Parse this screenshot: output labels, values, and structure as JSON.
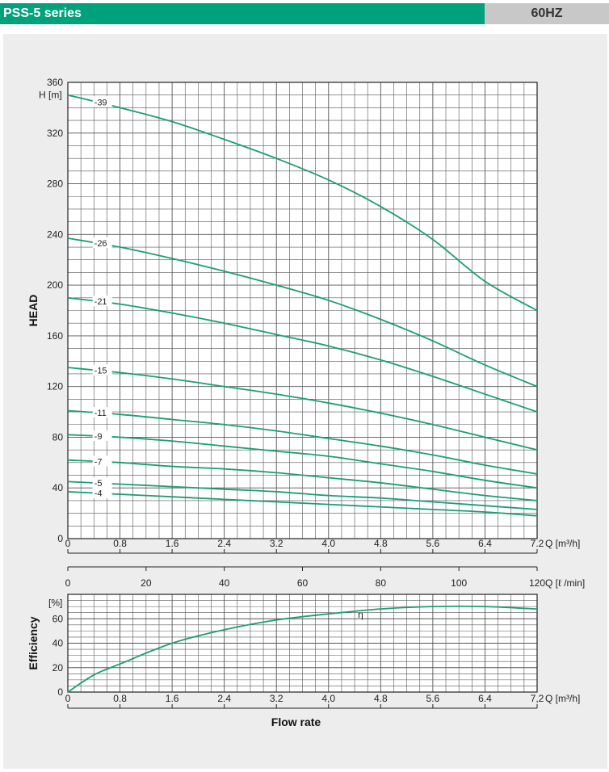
{
  "header": {
    "series": "PSS-5 series",
    "frequency": "60HZ"
  },
  "colors": {
    "accent": "#00a27c",
    "curve": "#1a9f78",
    "grid": "#555555",
    "panel": "#ededed"
  },
  "chart_data": [
    {
      "type": "line",
      "title": "",
      "ylabel": "HEAD",
      "yunit": "H [m]",
      "xunit": "Q [m³/h]",
      "ylim": [
        0,
        360
      ],
      "xlim": [
        0,
        7.2
      ],
      "x_ticks": [
        "0",
        "0.8",
        "1.6",
        "2.4",
        "3.2",
        "4.0",
        "4.8",
        "5.6",
        "6.4",
        "7.2"
      ],
      "y_ticks": [
        "0",
        "40",
        "80",
        "120",
        "160",
        "200",
        "240",
        "280",
        "320",
        "360"
      ],
      "grid": true,
      "x": [
        0,
        0.8,
        1.6,
        2.4,
        3.2,
        4.0,
        4.8,
        5.6,
        6.4,
        7.2
      ],
      "series": [
        {
          "name": "-39",
          "values": [
            350,
            340,
            329,
            315,
            300,
            283,
            262,
            236,
            203,
            180
          ]
        },
        {
          "name": "-26",
          "values": [
            237,
            230,
            221,
            211,
            200,
            188,
            173,
            156,
            137,
            120
          ]
        },
        {
          "name": "-21",
          "values": [
            190,
            185,
            178,
            170,
            161,
            152,
            141,
            128,
            114,
            100
          ]
        },
        {
          "name": "-15",
          "values": [
            135,
            131,
            126,
            120,
            114,
            107,
            99,
            90,
            80,
            70
          ]
        },
        {
          "name": "-11",
          "values": [
            101,
            98,
            94,
            90,
            85,
            79,
            73,
            66,
            58,
            51
          ]
        },
        {
          "name": "-9",
          "values": [
            82,
            80,
            77,
            73,
            69,
            65,
            59,
            53,
            46,
            40
          ]
        },
        {
          "name": "-7",
          "values": [
            62,
            60,
            57,
            55,
            52,
            48,
            44,
            39,
            34,
            30
          ]
        },
        {
          "name": "-5",
          "values": [
            45,
            43,
            41,
            39,
            37,
            34,
            32,
            29,
            26,
            23
          ]
        },
        {
          "name": "-4",
          "values": [
            37,
            35,
            33,
            31,
            29,
            27,
            25,
            23,
            21,
            18
          ]
        }
      ]
    },
    {
      "type": "line",
      "ylabel": "Efficiency",
      "yunit": "[%]",
      "xlabel": "Flow rate",
      "xunit": "Q [m³/h]",
      "ylim": [
        0,
        80
      ],
      "xlim": [
        0,
        7.2
      ],
      "secondary_x_unit": "Q [ℓ /min]",
      "secondary_x_ticks": [
        "0",
        "20",
        "40",
        "60",
        "80",
        "100",
        "120"
      ],
      "x_ticks": [
        "0",
        "0.8",
        "1.6",
        "2.4",
        "3.2",
        "4,0",
        "4.8",
        "5.6",
        "6.4",
        "7,2"
      ],
      "y_ticks": [
        "0",
        "20",
        "40",
        "60"
      ],
      "grid": true,
      "x": [
        0,
        0.4,
        0.8,
        1.6,
        2.4,
        3.2,
        4.0,
        4.8,
        5.6,
        6.4,
        7.2
      ],
      "series": [
        {
          "name": "η",
          "values": [
            0,
            14,
            23,
            40,
            51,
            59,
            64,
            68,
            70,
            70,
            68
          ]
        }
      ]
    }
  ]
}
